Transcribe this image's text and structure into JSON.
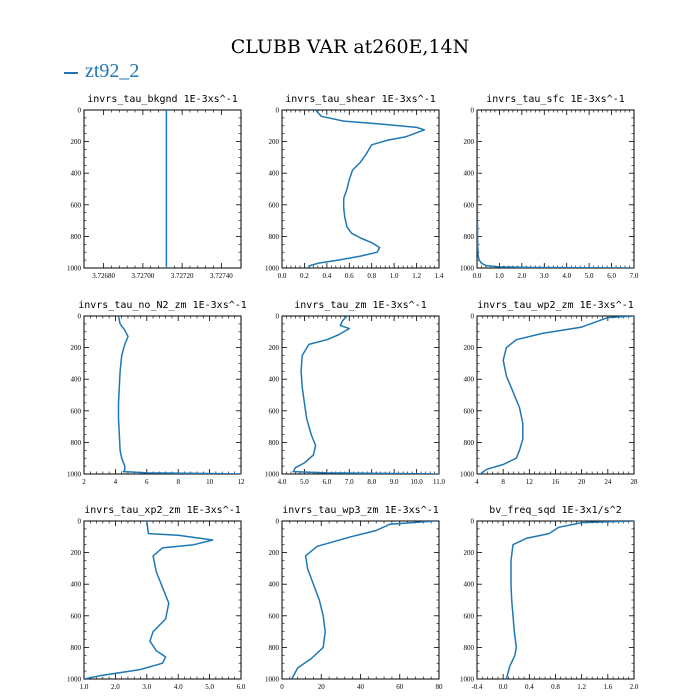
{
  "figure": {
    "title": "CLUBB VAR at260E,14N",
    "legend_label": "zt92_2",
    "series_color": "#1f77b4"
  },
  "chart_data": [
    {
      "type": "line",
      "title": "invrs_tau_bkgnd   1E-3xs^-1",
      "xlim": [
        3.7267,
        3.7275
      ],
      "ylim": [
        1000,
        0
      ],
      "xticks": [
        3.7268,
        3.727,
        3.7272,
        3.7274
      ],
      "xtick_labels": [
        "3.72680",
        "3.72700",
        "3.72720",
        "3.72740"
      ],
      "yticks": [
        0,
        200,
        400,
        600,
        800,
        1000
      ],
      "ytick_labels": [
        "0",
        "200",
        "400",
        "600",
        "800",
        "1000"
      ],
      "series": [
        {
          "x": [
            3.72712,
            3.72712
          ],
          "y": [
            0,
            1000
          ]
        }
      ]
    },
    {
      "type": "line",
      "title": "invrs_tau_shear   1E-3xs^-1",
      "xlim": [
        0.0,
        1.4
      ],
      "ylim": [
        1000,
        0
      ],
      "xticks": [
        0,
        0.2,
        0.4,
        0.6,
        0.8,
        1.0,
        1.2,
        1.4
      ],
      "xtick_labels": [
        "0.0",
        "0.2",
        "0.4",
        "0.6",
        "0.8",
        "1.0",
        "1.2",
        "1.4"
      ],
      "yticks": [
        0,
        200,
        400,
        600,
        800,
        1000
      ],
      "ytick_labels": [
        "0",
        "200",
        "400",
        "600",
        "800",
        "1000"
      ],
      "series": [
        {
          "x": [
            0.3,
            0.35,
            0.55,
            0.9,
            1.2,
            1.27,
            1.1,
            0.95,
            0.8,
            0.75,
            0.7,
            0.63,
            0.6,
            0.58,
            0.55,
            0.55,
            0.56,
            0.58,
            0.62,
            0.7,
            0.8,
            0.87,
            0.85,
            0.7,
            0.5,
            0.32,
            0.25,
            0.23
          ],
          "y": [
            0,
            40,
            70,
            90,
            110,
            125,
            170,
            190,
            220,
            280,
            330,
            380,
            440,
            500,
            560,
            620,
            680,
            740,
            780,
            810,
            840,
            870,
            900,
            925,
            950,
            970,
            985,
            1000
          ]
        }
      ]
    },
    {
      "type": "line",
      "title": "invrs_tau_sfc   1E-3xs^-1",
      "xlim": [
        0.0,
        7.0
      ],
      "ylim": [
        1000,
        0
      ],
      "xticks": [
        0,
        1,
        2,
        3,
        4,
        5,
        6,
        7
      ],
      "xtick_labels": [
        "0.0",
        "1.0",
        "2.0",
        "3.0",
        "4.0",
        "5.0",
        "6.0",
        "7.0"
      ],
      "yticks": [
        0,
        200,
        400,
        600,
        800,
        1000
      ],
      "ytick_labels": [
        "0",
        "200",
        "400",
        "600",
        "800",
        "1000"
      ],
      "series": [
        {
          "x": [
            0.01,
            0.01,
            0.02,
            0.03,
            0.05,
            0.1,
            0.2,
            0.4,
            1.0,
            2.5,
            7.0
          ],
          "y": [
            0,
            400,
            700,
            850,
            920,
            950,
            970,
            985,
            993,
            997,
            1000
          ]
        }
      ]
    },
    {
      "type": "line",
      "title": "invrs_tau_no_N2_zm   1E-3xs^-1",
      "xlim": [
        2,
        12
      ],
      "ylim": [
        1000,
        0
      ],
      "xticks": [
        2,
        4,
        6,
        8,
        10,
        12
      ],
      "xtick_labels": [
        "2",
        "4",
        "6",
        "8",
        "10",
        "12"
      ],
      "yticks": [
        0,
        200,
        400,
        600,
        800,
        1000
      ],
      "ytick_labels": [
        "0",
        "200",
        "400",
        "600",
        "800",
        "1000"
      ],
      "series": [
        {
          "x": [
            4.2,
            4.3,
            4.6,
            4.8,
            4.6,
            4.4,
            4.3,
            4.25,
            4.2,
            4.2,
            4.25,
            4.3,
            4.4,
            4.6,
            4.6,
            4.5,
            6.0,
            10.0,
            12.0
          ],
          "y": [
            0,
            50,
            90,
            130,
            180,
            250,
            350,
            450,
            550,
            650,
            750,
            850,
            900,
            950,
            975,
            985,
            993,
            997,
            1000
          ]
        }
      ]
    },
    {
      "type": "line",
      "title": "invrs_tau_zm   1E-3xs^-1",
      "xlim": [
        4.0,
        11.0
      ],
      "ylim": [
        1000,
        0
      ],
      "xticks": [
        4,
        5,
        6,
        7,
        8,
        9,
        10,
        11
      ],
      "xtick_labels": [
        "4.0",
        "5.0",
        "6.0",
        "7.0",
        "8.0",
        "9.0",
        "10.0",
        "11.0"
      ],
      "yticks": [
        0,
        200,
        400,
        600,
        800,
        1000
      ],
      "ytick_labels": [
        "0",
        "200",
        "400",
        "600",
        "800",
        "1000"
      ],
      "series": [
        {
          "x": [
            6.9,
            6.7,
            6.6,
            7.0,
            6.5,
            6.0,
            5.2,
            4.9,
            4.85,
            4.9,
            5.0,
            5.1,
            5.3,
            5.5,
            5.4,
            5.0,
            4.6,
            4.5,
            6.0,
            10.0,
            11.0
          ],
          "y": [
            0,
            30,
            60,
            80,
            120,
            150,
            180,
            250,
            350,
            450,
            550,
            650,
            750,
            820,
            880,
            930,
            960,
            985,
            993,
            998,
            1000
          ]
        }
      ]
    },
    {
      "type": "line",
      "title": "invrs_tau_wp2_zm   1E-3xs^-1",
      "xlim": [
        4,
        28
      ],
      "ylim": [
        1000,
        0
      ],
      "xticks": [
        4,
        8,
        12,
        16,
        20,
        24,
        28
      ],
      "xtick_labels": [
        "4",
        "8",
        "12",
        "16",
        "20",
        "24",
        "28"
      ],
      "yticks": [
        0,
        200,
        400,
        600,
        800,
        1000
      ],
      "ytick_labels": [
        "0",
        "200",
        "400",
        "600",
        "800",
        "1000"
      ],
      "series": [
        {
          "x": [
            28,
            24,
            20,
            14,
            10,
            8.5,
            8.0,
            8.5,
            9.5,
            10.5,
            11.0,
            11.0,
            10.5,
            10.0,
            8.0,
            5.5,
            4.5
          ],
          "y": [
            0,
            10,
            70,
            110,
            150,
            200,
            280,
            380,
            480,
            580,
            680,
            780,
            850,
            900,
            940,
            970,
            1000
          ]
        }
      ]
    },
    {
      "type": "line",
      "title": "invrs_tau_xp2_zm   1E-3xs^-1",
      "xlim": [
        1.0,
        6.0
      ],
      "ylim": [
        1000,
        0
      ],
      "xticks": [
        1,
        2,
        3,
        4,
        5,
        6
      ],
      "xtick_labels": [
        "1.0",
        "2.0",
        "3.0",
        "4.0",
        "5.0",
        "6.0"
      ],
      "yticks": [
        0,
        200,
        400,
        600,
        800,
        1000
      ],
      "ytick_labels": [
        "0",
        "200",
        "400",
        "600",
        "800",
        "1000"
      ],
      "series": [
        {
          "x": [
            3.0,
            3.05,
            4.0,
            5.1,
            4.5,
            3.5,
            3.2,
            3.3,
            3.5,
            3.7,
            3.6,
            3.2,
            3.1,
            3.3,
            3.6,
            3.5,
            2.8,
            1.5,
            1.0
          ],
          "y": [
            0,
            80,
            90,
            120,
            150,
            170,
            220,
            320,
            420,
            520,
            620,
            700,
            760,
            820,
            860,
            900,
            940,
            980,
            1000
          ]
        }
      ]
    },
    {
      "type": "line",
      "title": "invrs_tau_wp3_zm   1E-3xs^-1",
      "xlim": [
        0,
        80
      ],
      "ylim": [
        1000,
        0
      ],
      "xticks": [
        0,
        20,
        40,
        60,
        80
      ],
      "xtick_labels": [
        "0",
        "20",
        "40",
        "60",
        "80"
      ],
      "yticks": [
        0,
        200,
        400,
        600,
        800,
        1000
      ],
      "ytick_labels": [
        "0",
        "200",
        "400",
        "600",
        "800",
        "1000"
      ],
      "series": [
        {
          "x": [
            78,
            55,
            48,
            35,
            18,
            12,
            13,
            16,
            19,
            21,
            22,
            21,
            15,
            8,
            5
          ],
          "y": [
            0,
            20,
            60,
            100,
            160,
            220,
            300,
            400,
            500,
            600,
            700,
            800,
            870,
            930,
            1000
          ]
        }
      ]
    },
    {
      "type": "line",
      "title": "bv_freq_sqd   1E-3x1/s^2",
      "xlim": [
        -0.4,
        2.0
      ],
      "ylim": [
        1000,
        0
      ],
      "xticks": [
        -0.4,
        0,
        0.4,
        0.8,
        1.2,
        1.6,
        2.0
      ],
      "xtick_labels": [
        "-0.4",
        "0.0",
        "0.4",
        "0.8",
        "1.2",
        "1.6",
        "2.0"
      ],
      "yticks": [
        0,
        200,
        400,
        600,
        800,
        1000
      ],
      "ytick_labels": [
        "0",
        "200",
        "400",
        "600",
        "800",
        "1000"
      ],
      "series": [
        {
          "x": [
            2.0,
            1.2,
            0.85,
            0.7,
            0.35,
            0.15,
            0.12,
            0.12,
            0.13,
            0.15,
            0.17,
            0.2,
            0.18,
            0.1,
            0.05
          ],
          "y": [
            0,
            10,
            40,
            80,
            110,
            150,
            250,
            400,
            500,
            600,
            700,
            800,
            850,
            920,
            1000
          ]
        }
      ]
    }
  ]
}
